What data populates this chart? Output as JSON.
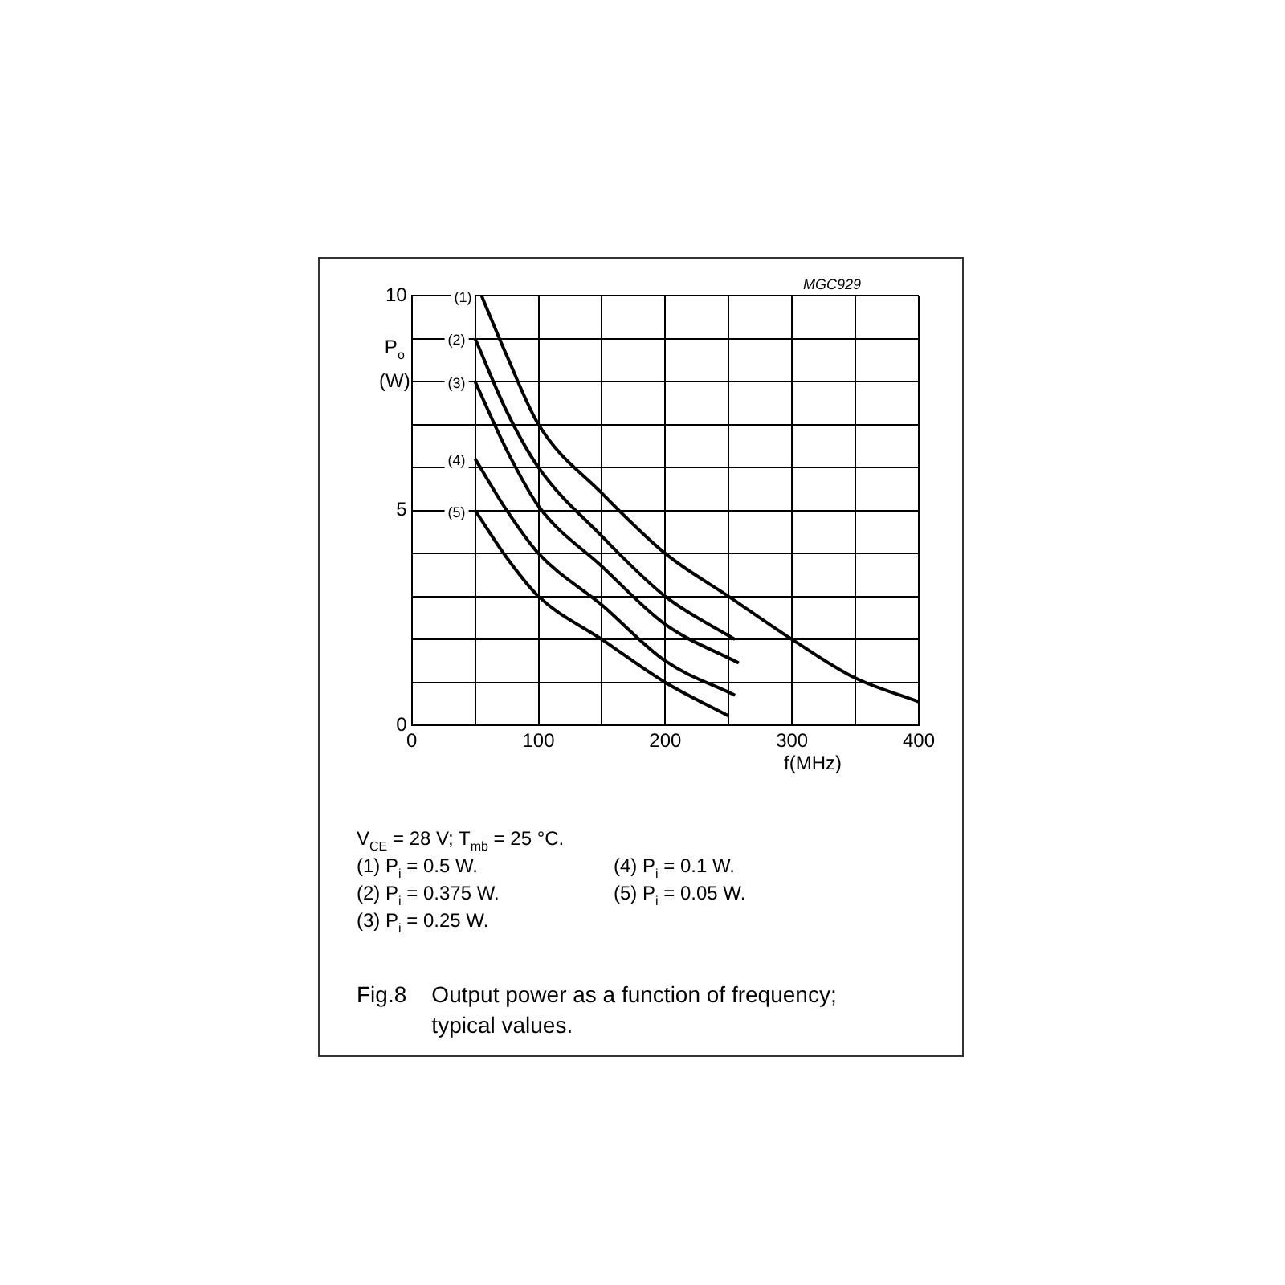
{
  "chart_data": {
    "type": "line",
    "title": "Fig.8    Output power as a function of frequency; typical values.",
    "subtitle": "V$_{CE}$ = 28 V; T$_{mb}$ = 25 °C.",
    "xlabel": "f(MHz)",
    "ylabel": "P$_{o}$ (W)",
    "series": [
      {
        "name": "(1)",
        "color": "#000000",
        "x": [
          55,
          75,
          100,
          150,
          200,
          250,
          300,
          350,
          400
        ],
        "values": [
          10,
          8.6,
          7,
          5.4,
          4,
          3,
          2,
          1.1,
          0.55
        ]
      },
      {
        "name": "(2)",
        "color": "#000000",
        "x": [
          50,
          75,
          100,
          150,
          200,
          255
        ],
        "values": [
          9,
          7.3,
          6,
          4.4,
          3,
          2
        ]
      },
      {
        "name": "(3)",
        "color": "#000000",
        "x": [
          50,
          75,
          100,
          150,
          200,
          258
        ],
        "values": [
          8,
          6.4,
          5.1,
          3.7,
          2.35,
          1.45
        ]
      },
      {
        "name": "(4)",
        "color": "#000000",
        "x": [
          50,
          75,
          100,
          150,
          200,
          255
        ],
        "values": [
          6.2,
          5,
          4,
          2.8,
          1.5,
          0.7
        ]
      },
      {
        "name": "(5)",
        "color": "#000000",
        "x": [
          50,
          75,
          100,
          150,
          200,
          250
        ],
        "values": [
          5,
          3.9,
          3,
          2,
          1,
          0.22
        ]
      }
    ],
    "xlim": [
      0,
      400
    ],
    "xticks": [
      0,
      {
        "value": 50,
        "label": null
      },
      100,
      {
        "value": 150,
        "label": null
      },
      200,
      {
        "value": 250,
        "label": null
      },
      300,
      {
        "value": 350,
        "label": null
      },
      400
    ],
    "ylim": [
      0,
      10
    ],
    "yticks": [
      0,
      {
        "value": 1,
        "label": null
      },
      {
        "value": 2,
        "label": null
      },
      {
        "value": 3,
        "label": null
      },
      {
        "value": 4,
        "label": null
      },
      5,
      {
        "value": 6,
        "label": null
      },
      {
        "value": 7,
        "label": null
      },
      {
        "value": 8,
        "label": null
      },
      {
        "value": 9,
        "label": null
      },
      10
    ],
    "grid": true,
    "legend": false,
    "marker": "none",
    "line_style": "solid",
    "annotations": [
      "(1)  P$_{i}$ = 0.5 W.",
      "(2)  P$_{i}$ = 0.375 W.",
      "(3)  P$_{i}$ = 0.25 W.",
      "(4)  P$_{i}$ = 0.1 W.",
      "(5)  P$_{i}$ = 0.05 W.",
      "MGC929"
    ]
  }
}
